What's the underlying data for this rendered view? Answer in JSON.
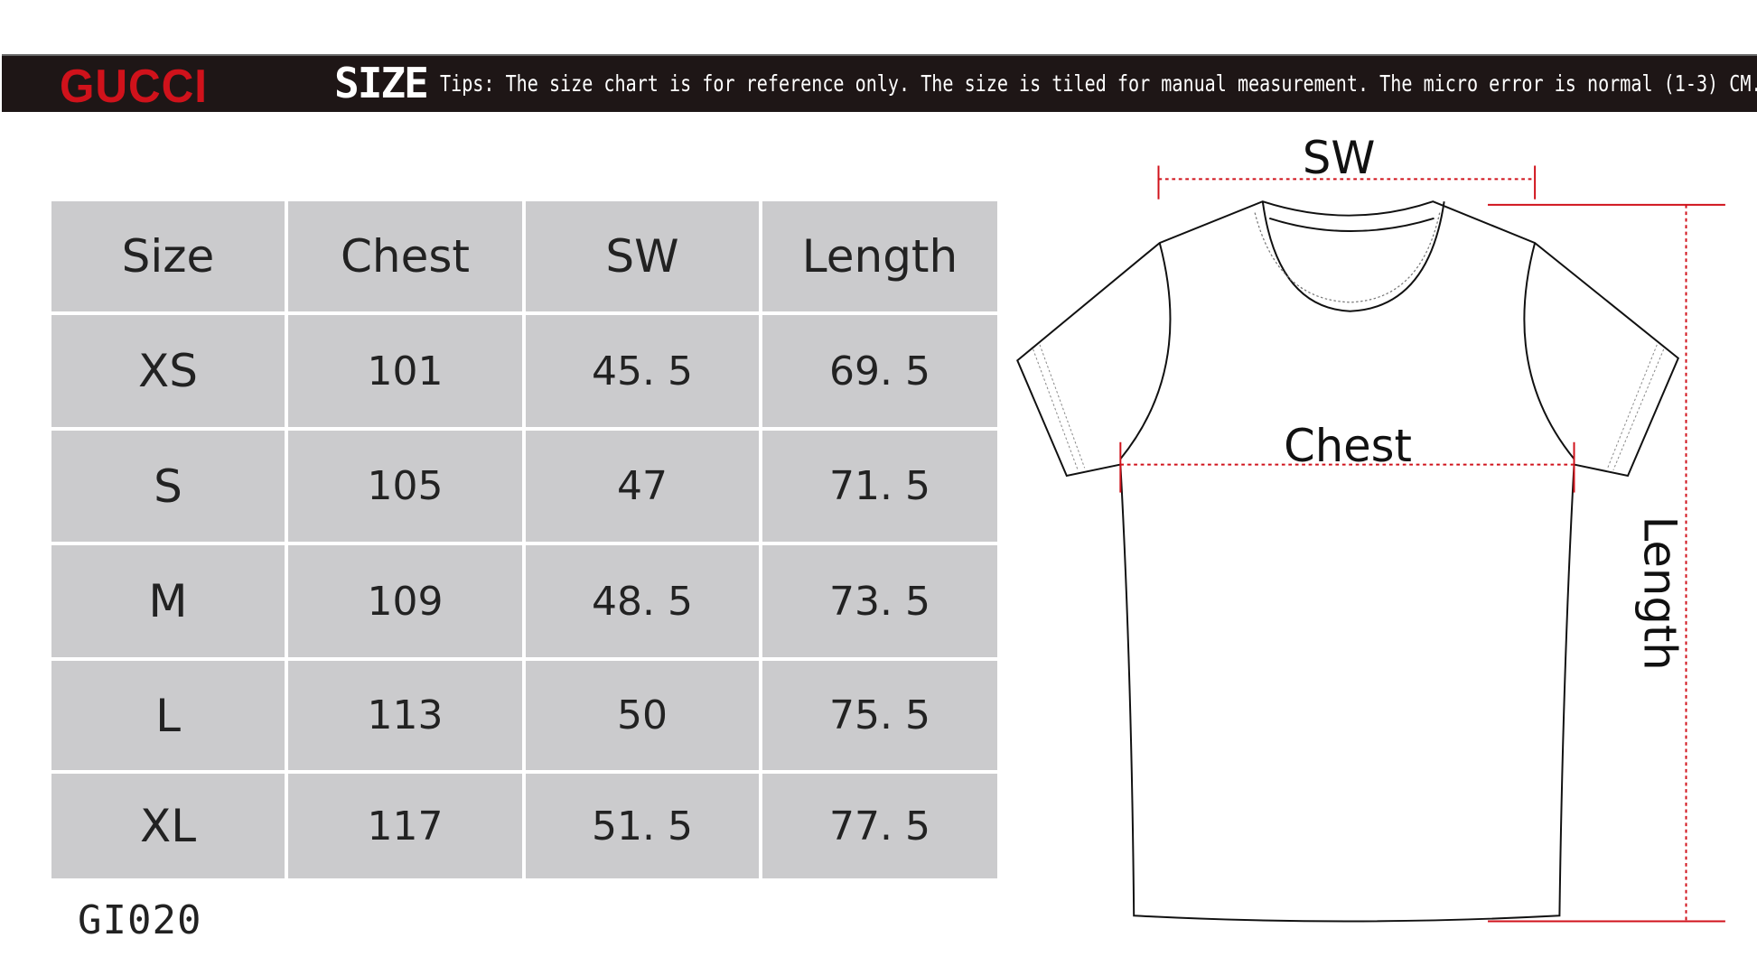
{
  "header": {
    "brand": "GUCCI",
    "size_word": "SIZE",
    "tips": "Tips: The size chart is for reference only. The size is tiled for manual measurement. The micro error is normal (1-3) CM."
  },
  "table": {
    "columns": [
      "Size",
      "Chest",
      "SW",
      "Length"
    ],
    "rows": [
      [
        "XS",
        "101",
        "45. 5",
        "69. 5"
      ],
      [
        "S",
        "105",
        "47",
        "71. 5"
      ],
      [
        "M",
        "109",
        "48. 5",
        "73. 5"
      ],
      [
        "L",
        "113",
        "50",
        "75. 5"
      ],
      [
        "XL",
        "117",
        "51. 5",
        "77. 5"
      ]
    ]
  },
  "product_code": "GI020",
  "diagram": {
    "sw_label": "SW",
    "chest_label": "Chest",
    "length_label": "Length"
  },
  "colors": {
    "brand_red": "#d0121b",
    "header_bg": "#1e1616",
    "cell_bg": "#cbcbcd",
    "measure_line": "#d0121b"
  }
}
